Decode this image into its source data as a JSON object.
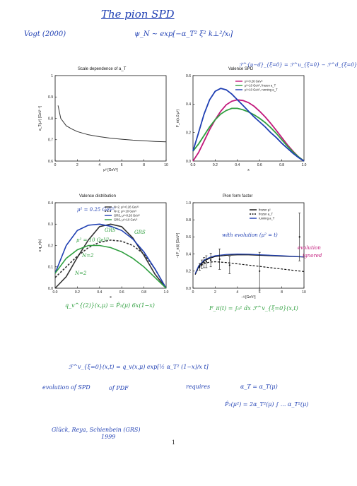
{
  "header": {
    "title": "The pion SPD",
    "reference": "Vogt (2000)",
    "formula": "ψ_N ~ exp[−α_T² ξ² k⊥²/xᵢ]",
    "corner_formula": "ℱ^{u−d}_{ξ=0} = ℱ^u_{ξ=0} − ℱ^d_{ξ=0}"
  },
  "bottom_notes": {
    "formula_spd": "ℱ^v_{ξ=0}(x,t) = q_v(x,μ) exp[½ α_T² (1−x)/x t]",
    "evolution_spd": "evolution of SPD",
    "of_pdf": "of PDF",
    "requires": "requires",
    "alpha_relation": "α_T = α_T(μ)",
    "p2_relation": "P̂₂(μ²) = 2α_T²(μ) ∫ ... α_T²(μ)",
    "authors": "Glück, Reya, Schienbein (GRS)",
    "year": "1999"
  },
  "page_number": "1",
  "panels": {
    "scale": {
      "title": "Scale dependence of a_T",
      "xlabel": "μ² [GeV²]",
      "ylabel": "a_T(μ²) [GeV⁻²]"
    },
    "valence_spd": {
      "title": "Valence SPD",
      "xlabel": "x",
      "ylabel": "F_π(x,0,μ²)",
      "legend": [
        "μ²=0.26 GeV²",
        "μ²=10 GeV², frozen a_T",
        "μ²=10 GeV², running a_T"
      ]
    },
    "valence_dist": {
      "title": "Valence distribution",
      "xlabel": "x",
      "ylabel": "x q_v(x)",
      "legend": [
        "N=2, μ²=0.26 GeV²",
        "N=2, μ²=10 GeV²",
        "GRS, μ²=0.26 GeV²",
        "GRS, μ²=10 GeV²"
      ],
      "annotations": {
        "mu_low": "μ² = 0.25 GeV²",
        "mu_high": "μ² = 10 GeV²",
        "grs1": "GRS",
        "grs2": "GRS",
        "n2a": "N=2",
        "n2b": "N=2"
      },
      "formula_below": "q_v^{(2)}(x,μ) = P̂₂(μ) 6x(1−x)"
    },
    "form_factor": {
      "title": "Pion form factor",
      "xlabel": "−t [GeV²]",
      "ylabel": "−t F_π(t) [GeV²]",
      "legend": [
        "frozen μ²",
        "frozen a_T",
        "running a_T"
      ],
      "annotations": {
        "with_evolution": "with evolution (μ² = t)",
        "evolution_ignored_1": "evolution",
        "evolution_ignored_2": "ignored"
      },
      "formula_below": "F_π(t) = ∫₀¹ dx ℱ^v_{ξ=0}(x,t)"
    }
  },
  "chart_data": [
    {
      "type": "line",
      "title": "Scale dependence of a_T",
      "xlabel": "μ² [GeV²]",
      "ylabel": "a_T(μ²) [GeV⁻²]",
      "xlim": [
        0,
        10
      ],
      "ylim": [
        0.6,
        1.0
      ],
      "xticks": [
        "0",
        "2",
        "4",
        "6",
        "8",
        "10"
      ],
      "yticks": [
        "0.6",
        "0.7",
        "0.8",
        "0.9",
        "1"
      ],
      "series": [
        {
          "x": [
            0.26,
            0.5,
            1,
            1.5,
            2,
            3,
            4,
            5,
            6,
            7,
            8,
            9,
            10
          ],
          "y": [
            0.86,
            0.8,
            0.765,
            0.75,
            0.738,
            0.723,
            0.714,
            0.707,
            0.702,
            0.698,
            0.695,
            0.692,
            0.69
          ]
        }
      ]
    },
    {
      "type": "line",
      "title": "Valence SPD",
      "xlabel": "x",
      "ylabel": "F_π(x,0,μ²)",
      "xlim": [
        0,
        1
      ],
      "ylim": [
        0,
        0.6
      ],
      "xticks": [
        "0.0",
        "0.2",
        "0.4",
        "0.6",
        "0.8",
        "1.0"
      ],
      "yticks": [
        "0.0",
        "0.2",
        "0.4",
        "0.6"
      ],
      "series": [
        {
          "name": "μ²=0.26 GeV²",
          "color": "#c2187b",
          "x": [
            0,
            0.05,
            0.1,
            0.15,
            0.2,
            0.25,
            0.3,
            0.35,
            0.4,
            0.45,
            0.5,
            0.55,
            0.6,
            0.65,
            0.7,
            0.75,
            0.8,
            0.85,
            0.9,
            0.95,
            1.0
          ],
          "y": [
            0.0,
            0.06,
            0.14,
            0.22,
            0.29,
            0.35,
            0.395,
            0.42,
            0.43,
            0.425,
            0.41,
            0.385,
            0.35,
            0.31,
            0.265,
            0.215,
            0.165,
            0.115,
            0.07,
            0.03,
            0.0
          ]
        },
        {
          "name": "μ²=10 GeV², frozen a_T",
          "color": "#2f9f3f",
          "x": [
            0,
            0.05,
            0.1,
            0.15,
            0.2,
            0.25,
            0.3,
            0.35,
            0.4,
            0.45,
            0.5,
            0.55,
            0.6,
            0.65,
            0.7,
            0.75,
            0.8,
            0.85,
            0.9,
            0.95,
            1.0
          ],
          "y": [
            0.07,
            0.12,
            0.18,
            0.24,
            0.29,
            0.33,
            0.355,
            0.37,
            0.37,
            0.36,
            0.345,
            0.325,
            0.3,
            0.27,
            0.235,
            0.195,
            0.15,
            0.105,
            0.065,
            0.03,
            0.0
          ]
        },
        {
          "name": "μ²=10 GeV², running a_T",
          "color": "#1f3fb3",
          "x": [
            0,
            0.05,
            0.1,
            0.15,
            0.2,
            0.25,
            0.3,
            0.35,
            0.4,
            0.45,
            0.5,
            0.55,
            0.6,
            0.65,
            0.7,
            0.75,
            0.8,
            0.85,
            0.9,
            0.95,
            1.0
          ],
          "y": [
            0.07,
            0.2,
            0.33,
            0.43,
            0.49,
            0.51,
            0.5,
            0.47,
            0.43,
            0.39,
            0.35,
            0.31,
            0.275,
            0.24,
            0.2,
            0.165,
            0.125,
            0.09,
            0.055,
            0.025,
            0.0
          ]
        }
      ]
    },
    {
      "type": "line",
      "title": "Valence distribution",
      "xlabel": "x",
      "ylabel": "x q_v(x)",
      "xlim": [
        0,
        1
      ],
      "ylim": [
        0,
        0.4
      ],
      "xticks": [
        "0.0",
        "0.2",
        "0.4",
        "0.6",
        "0.8",
        "1.0"
      ],
      "yticks": [
        "0.0",
        "0.1",
        "0.2",
        "0.3",
        "0.4"
      ],
      "series": [
        {
          "name": "N=2, μ²=0.26 GeV²",
          "color": "#333333",
          "dash": "solid",
          "x": [
            0,
            0.1,
            0.2,
            0.3,
            0.4,
            0.5,
            0.6,
            0.7,
            0.8,
            0.9,
            1.0
          ],
          "y": [
            0.0,
            0.054,
            0.144,
            0.226,
            0.288,
            0.3,
            0.288,
            0.235,
            0.154,
            0.065,
            0.0
          ]
        },
        {
          "name": "N=2, μ²=10 GeV²",
          "color": "#333333",
          "dash": "dashed",
          "x": [
            0,
            0.1,
            0.2,
            0.3,
            0.4,
            0.5,
            0.6,
            0.7,
            0.8,
            0.9,
            1.0
          ],
          "y": [
            0.05,
            0.1,
            0.15,
            0.19,
            0.215,
            0.225,
            0.22,
            0.2,
            0.16,
            0.09,
            0.0
          ]
        },
        {
          "name": "GRS, μ²=0.26 GeV²",
          "color": "#1f3fb3",
          "dash": "solid",
          "x": [
            0,
            0.1,
            0.2,
            0.3,
            0.4,
            0.5,
            0.6,
            0.7,
            0.8,
            0.9,
            1.0
          ],
          "y": [
            0.07,
            0.2,
            0.27,
            0.295,
            0.3,
            0.29,
            0.27,
            0.23,
            0.17,
            0.09,
            0.0
          ]
        },
        {
          "name": "GRS, μ²=10 GeV²",
          "color": "#2f9f3f",
          "dash": "solid",
          "x": [
            0,
            0.1,
            0.2,
            0.3,
            0.4,
            0.5,
            0.6,
            0.7,
            0.8,
            0.9,
            1.0
          ],
          "y": [
            0.07,
            0.14,
            0.18,
            0.2,
            0.2,
            0.19,
            0.17,
            0.14,
            0.1,
            0.05,
            0.0
          ]
        }
      ]
    },
    {
      "type": "line",
      "title": "Pion form factor",
      "xlabel": "−t [GeV²]",
      "ylabel": "−t F_π(t) [GeV²]",
      "xlim": [
        0,
        10
      ],
      "ylim": [
        0,
        1.0
      ],
      "xticks": [
        "0",
        "2",
        "4",
        "6",
        "8",
        "10"
      ],
      "yticks": [
        "0.0",
        "0.2",
        "0.4",
        "0.6",
        "0.8",
        "1.0"
      ],
      "series": [
        {
          "name": "frozen μ²",
          "color": "#111111",
          "dash": "solid",
          "x": [
            0.2,
            0.5,
            1,
            1.5,
            2,
            3,
            4,
            5,
            6,
            7,
            8,
            9,
            10
          ],
          "y": [
            0.16,
            0.25,
            0.32,
            0.35,
            0.37,
            0.385,
            0.39,
            0.39,
            0.385,
            0.38,
            0.375,
            0.37,
            0.365
          ]
        },
        {
          "name": "frozen a_T",
          "color": "#111111",
          "dash": "dashed",
          "x": [
            0.2,
            0.5,
            1,
            1.5,
            2,
            3,
            4,
            5,
            6,
            7,
            8,
            9,
            10
          ],
          "y": [
            0.16,
            0.24,
            0.29,
            0.305,
            0.31,
            0.3,
            0.285,
            0.27,
            0.255,
            0.24,
            0.225,
            0.21,
            0.195
          ]
        },
        {
          "name": "running a_T",
          "color": "#1f3fb3",
          "dash": "solid",
          "x": [
            0.2,
            0.5,
            1,
            1.5,
            2,
            3,
            4,
            5,
            6,
            7,
            8,
            9,
            10
          ],
          "y": [
            0.17,
            0.26,
            0.33,
            0.36,
            0.38,
            0.395,
            0.4,
            0.398,
            0.392,
            0.386,
            0.38,
            0.373,
            0.366
          ]
        }
      ],
      "data_points": [
        {
          "x": 0.6,
          "y": 0.25,
          "err": 0.04
        },
        {
          "x": 0.8,
          "y": 0.28,
          "err": 0.05
        },
        {
          "x": 1.0,
          "y": 0.3,
          "err": 0.06
        },
        {
          "x": 1.2,
          "y": 0.31,
          "err": 0.07
        },
        {
          "x": 1.6,
          "y": 0.33,
          "err": 0.08
        },
        {
          "x": 2.4,
          "y": 0.34,
          "err": 0.12
        },
        {
          "x": 3.3,
          "y": 0.27,
          "err": 0.1
        },
        {
          "x": 6.0,
          "y": 0.2,
          "err": 0.22
        },
        {
          "x": 9.6,
          "y": 0.6,
          "err": 0.28
        }
      ]
    }
  ]
}
